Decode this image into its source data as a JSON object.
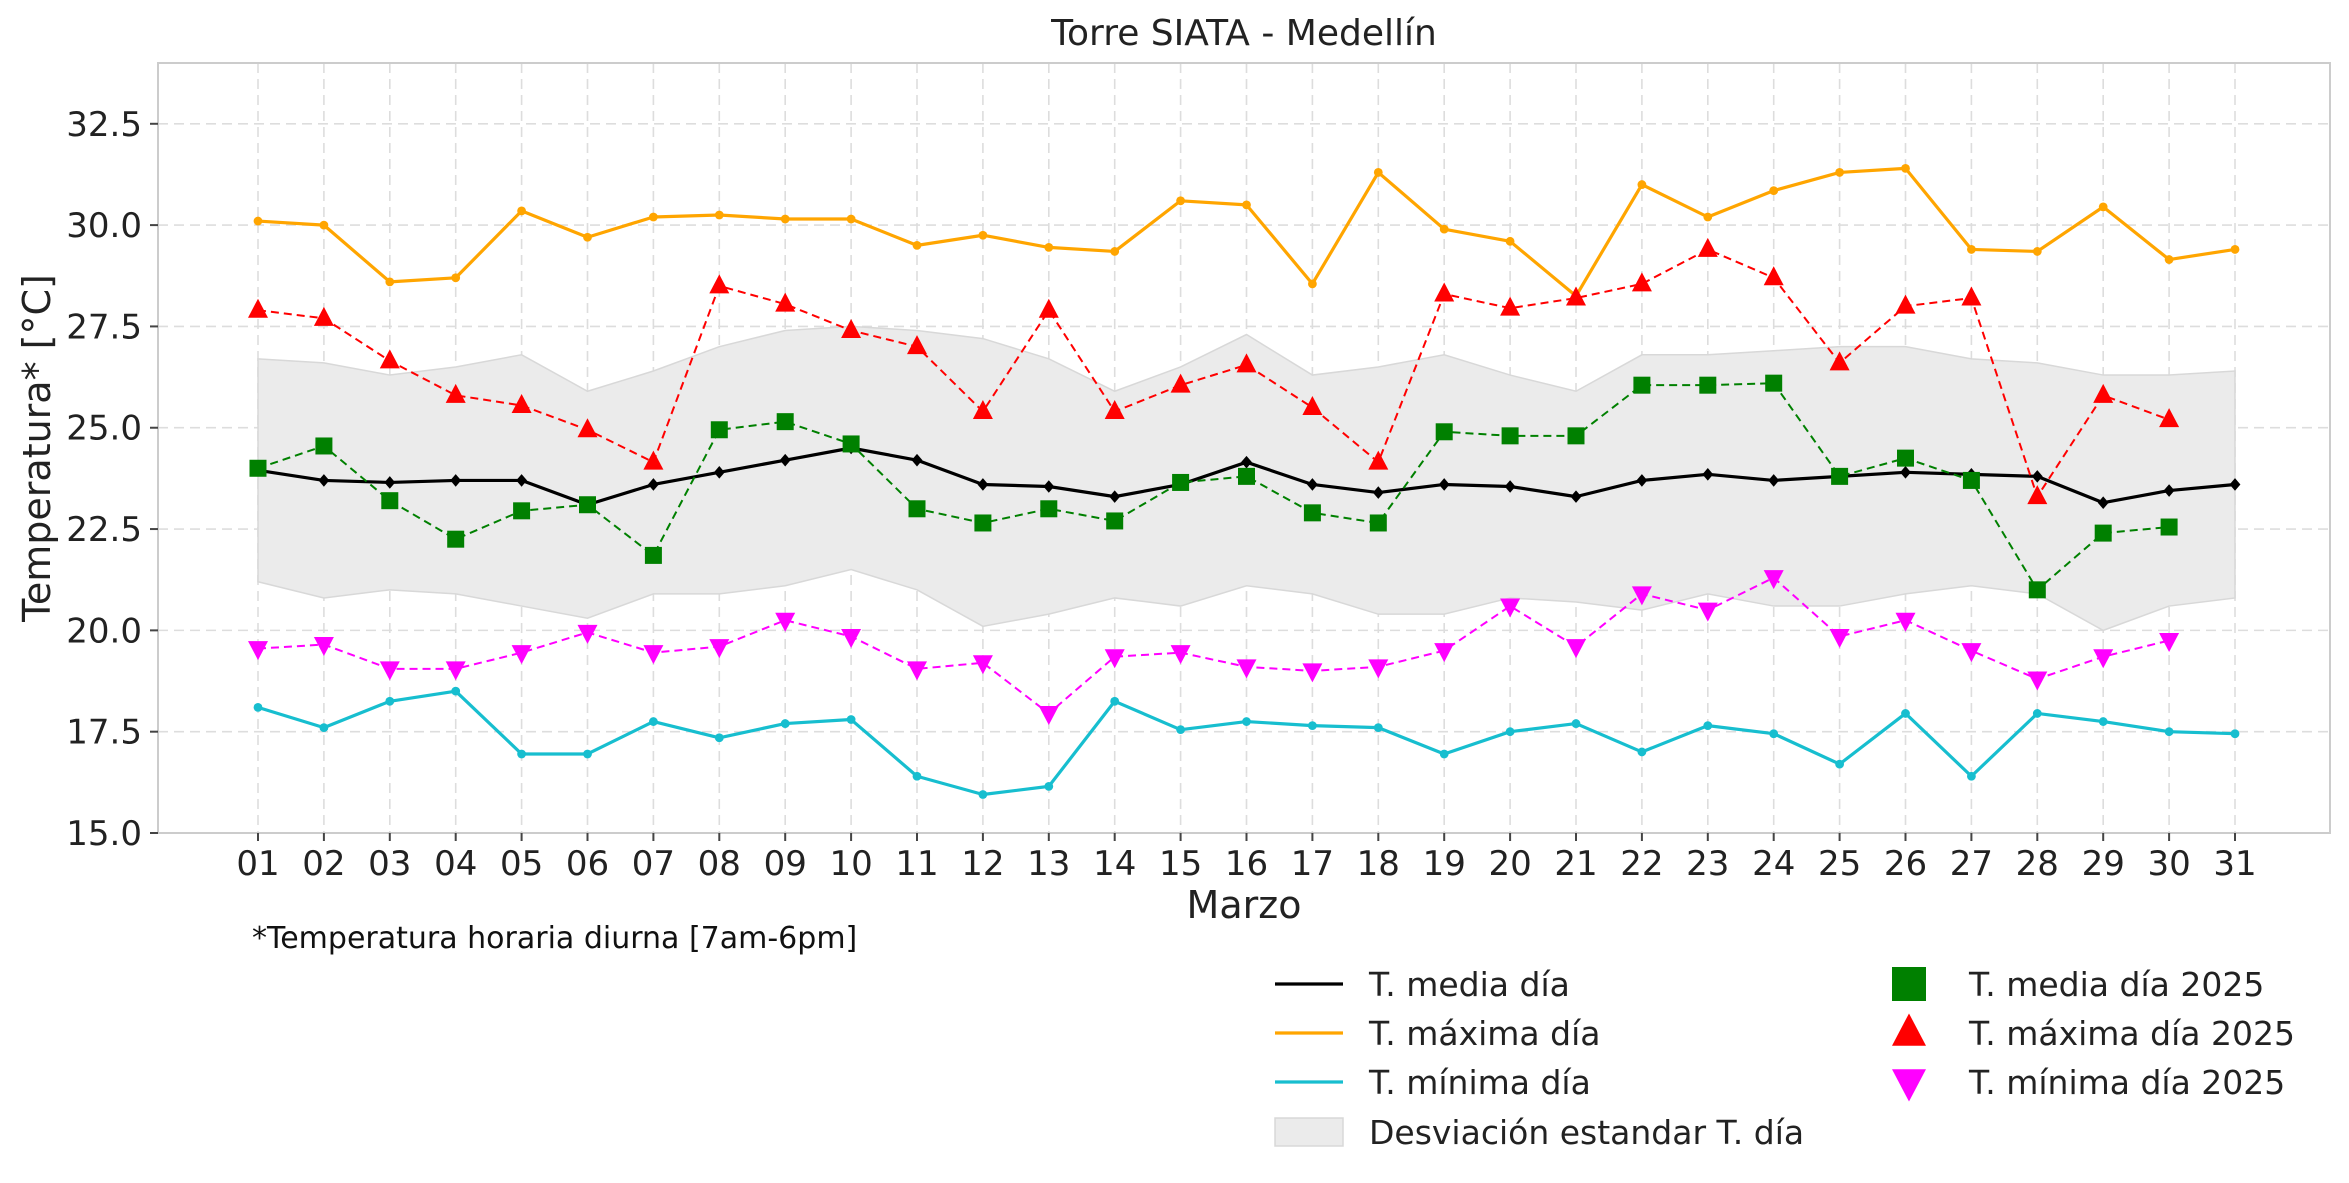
{
  "chart_data": {
    "type": "line",
    "title": "Torre SIATA - Medellín",
    "xlabel": "Marzo",
    "ylabel": "Temperatura* [°C]",
    "note": "*Temperatura horaria diurna [7am-6pm]",
    "ylim": [
      15.0,
      34.0
    ],
    "yticks": [
      "15.0",
      "17.5",
      "20.0",
      "22.5",
      "25.0",
      "27.5",
      "30.0",
      "32.5"
    ],
    "grid": true,
    "legend_position": "bottom-right",
    "categories": [
      "01",
      "02",
      "03",
      "04",
      "05",
      "06",
      "07",
      "08",
      "09",
      "10",
      "11",
      "12",
      "13",
      "14",
      "15",
      "16",
      "17",
      "18",
      "19",
      "20",
      "21",
      "22",
      "23",
      "24",
      "25",
      "26",
      "27",
      "28",
      "29",
      "30",
      "31"
    ],
    "band": {
      "name": "Desviación estandar T. día",
      "color": "#e0e0e0",
      "upper": [
        26.7,
        26.6,
        26.3,
        26.5,
        26.8,
        25.9,
        26.4,
        27.0,
        27.4,
        27.5,
        27.4,
        27.2,
        26.7,
        25.9,
        26.5,
        27.3,
        26.3,
        26.5,
        26.8,
        26.3,
        25.9,
        26.8,
        26.8,
        26.9,
        27.0,
        27.0,
        26.7,
        26.6,
        26.3,
        26.3,
        26.4
      ],
      "lower": [
        21.2,
        20.8,
        21.0,
        20.9,
        20.6,
        20.3,
        20.9,
        20.9,
        21.1,
        21.5,
        21.0,
        20.1,
        20.4,
        20.8,
        20.6,
        21.1,
        20.9,
        20.4,
        20.4,
        20.8,
        20.7,
        20.5,
        20.9,
        20.6,
        20.6,
        20.9,
        21.1,
        20.9,
        20.0,
        20.6,
        20.8
      ]
    },
    "series": [
      {
        "name": "T. media día",
        "color": "#000000",
        "style": "solid",
        "marker": "diamond",
        "values": [
          23.95,
          23.7,
          23.65,
          23.7,
          23.7,
          23.1,
          23.6,
          23.9,
          24.2,
          24.5,
          24.2,
          23.6,
          23.55,
          23.3,
          23.6,
          24.15,
          23.6,
          23.4,
          23.6,
          23.55,
          23.3,
          23.7,
          23.85,
          23.7,
          23.8,
          23.9,
          23.85,
          23.8,
          23.15,
          23.45,
          23.6
        ]
      },
      {
        "name": "T. máxima día",
        "color": "#ffa500",
        "style": "solid",
        "marker": "circle",
        "values": [
          30.1,
          30.0,
          28.6,
          28.7,
          30.35,
          29.7,
          30.2,
          30.25,
          30.15,
          30.15,
          29.5,
          29.75,
          29.45,
          29.35,
          30.6,
          30.5,
          28.55,
          31.3,
          29.9,
          29.6,
          28.25,
          31.0,
          30.2,
          30.85,
          31.3,
          31.4,
          29.4,
          29.35,
          30.45,
          29.15,
          29.4
        ]
      },
      {
        "name": "T. mínima día",
        "color": "#17becf",
        "style": "solid",
        "marker": "circle",
        "values": [
          18.1,
          17.6,
          18.25,
          18.5,
          16.95,
          16.95,
          17.75,
          17.35,
          17.7,
          17.8,
          16.4,
          15.95,
          16.15,
          18.25,
          17.55,
          17.75,
          17.65,
          17.6,
          16.95,
          17.5,
          17.7,
          17.0,
          17.65,
          17.45,
          16.7,
          17.95,
          16.4,
          17.95,
          17.75,
          17.5,
          17.45
        ]
      },
      {
        "name": "T. media día 2025",
        "color": "#008000",
        "style": "dashed",
        "marker": "square",
        "values": [
          24.0,
          24.55,
          23.2,
          22.25,
          22.95,
          23.1,
          21.85,
          24.95,
          25.15,
          24.6,
          23.0,
          22.65,
          23.0,
          22.7,
          23.65,
          23.8,
          22.9,
          22.65,
          24.9,
          24.8,
          24.8,
          26.05,
          26.05,
          26.1,
          23.8,
          24.25,
          23.7,
          21.0,
          22.4,
          22.55,
          null
        ]
      },
      {
        "name": "T. máxima día 2025",
        "color": "#ff0000",
        "style": "dashed",
        "marker": "triangle-up",
        "values": [
          27.9,
          27.7,
          26.65,
          25.8,
          25.55,
          24.95,
          24.15,
          28.5,
          28.05,
          27.4,
          27.0,
          25.4,
          27.9,
          25.4,
          26.05,
          26.55,
          25.5,
          24.15,
          28.3,
          27.95,
          28.2,
          28.55,
          29.4,
          28.7,
          26.6,
          28.0,
          28.2,
          23.3,
          25.8,
          25.2,
          null
        ]
      },
      {
        "name": "T. mínima día 2025",
        "color": "#ff00ff",
        "style": "dashed",
        "marker": "triangle-down",
        "values": [
          19.55,
          19.65,
          19.05,
          19.05,
          19.45,
          19.95,
          19.45,
          19.6,
          20.25,
          19.85,
          19.05,
          19.2,
          17.95,
          19.35,
          19.45,
          19.1,
          19.0,
          19.1,
          19.5,
          20.6,
          19.6,
          20.9,
          20.5,
          21.3,
          19.85,
          20.25,
          19.5,
          18.8,
          19.35,
          19.75,
          null
        ]
      }
    ]
  }
}
